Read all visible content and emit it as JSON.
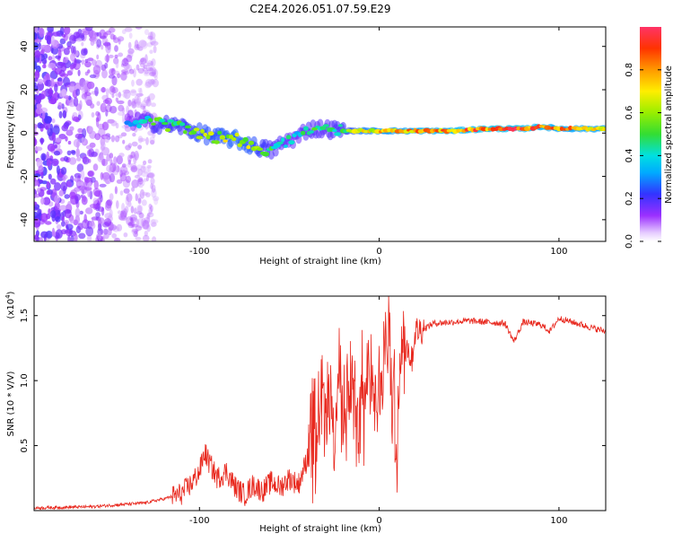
{
  "page_title": "C2E4.2026.051.07.59.E29",
  "chart_data": [
    {
      "type": "heatmap",
      "panel": "spectrogram",
      "xlabel": "Height of straight line (km)",
      "ylabel": "Frequency (Hz)",
      "xlim": [
        -192,
        126
      ],
      "ylim": [
        -50,
        49
      ],
      "xticks": [
        -100,
        0,
        100
      ],
      "yticks": [
        -40,
        -20,
        0,
        20,
        40
      ],
      "colorbar": {
        "label": "Normalized spectral amplitude",
        "range": [
          0,
          1
        ],
        "ticks": [
          0.0,
          0.2,
          0.4,
          0.6,
          0.8
        ]
      },
      "ridge": {
        "x": [
          -140,
          -130,
          -120,
          -110,
          -100,
          -90,
          -80,
          -70,
          -60,
          -50,
          -45,
          -40,
          -30,
          -20,
          -10,
          0,
          20,
          40,
          60,
          80,
          90,
          100,
          126
        ],
        "freq": [
          6,
          5,
          4,
          3,
          0,
          -2,
          -3,
          -6,
          -8,
          -3,
          -2,
          2,
          2,
          1,
          1,
          1,
          1,
          1,
          2,
          2,
          3,
          2,
          2
        ],
        "amplitude": [
          0.35,
          0.5,
          0.6,
          0.6,
          0.7,
          0.7,
          0.75,
          0.7,
          0.55,
          0.5,
          0.45,
          0.55,
          0.5,
          0.6,
          0.8,
          0.85,
          0.9,
          0.95,
          1.0,
          1.0,
          0.95,
          0.9,
          0.9
        ]
      }
    },
    {
      "type": "line",
      "panel": "snr",
      "xlabel": "Height of straight line (km)",
      "ylabel": "SNR (10 * V/V)",
      "yscale_label": "(x10",
      "yscale_exp": "4",
      "xlim": [
        -192,
        126
      ],
      "ylim": [
        0,
        1.65
      ],
      "xticks": [
        -100,
        0,
        100
      ],
      "yticks": [
        0.5,
        1.0,
        1.5
      ],
      "color": "#e8281e",
      "x": [
        -192,
        -160,
        -140,
        -130,
        -120,
        -110,
        -105,
        -100,
        -97,
        -95,
        -90,
        -85,
        -80,
        -75,
        -70,
        -65,
        -60,
        -55,
        -50,
        -45,
        -40,
        -38,
        -35,
        -32,
        -30,
        -27,
        -25,
        -22,
        -20,
        -18,
        -15,
        -12,
        -10,
        -8,
        -5,
        -3,
        0,
        3,
        5,
        8,
        10,
        12,
        15,
        18,
        20,
        25,
        30,
        40,
        50,
        60,
        70,
        75,
        80,
        90,
        95,
        100,
        110,
        120,
        126
      ],
      "y": [
        0.02,
        0.03,
        0.05,
        0.06,
        0.09,
        0.13,
        0.2,
        0.3,
        0.45,
        0.38,
        0.25,
        0.3,
        0.18,
        0.12,
        0.2,
        0.15,
        0.22,
        0.18,
        0.25,
        0.2,
        0.4,
        0.55,
        0.7,
        0.95,
        1.0,
        0.8,
        0.65,
        1.1,
        0.9,
        0.75,
        1.05,
        0.55,
        0.85,
        0.95,
        1.1,
        1.0,
        0.95,
        1.2,
        1.35,
        0.9,
        0.6,
        1.25,
        1.3,
        1.15,
        1.38,
        1.4,
        1.44,
        1.45,
        1.46,
        1.45,
        1.44,
        1.3,
        1.45,
        1.43,
        1.38,
        1.48,
        1.44,
        1.4,
        1.38
      ]
    }
  ]
}
